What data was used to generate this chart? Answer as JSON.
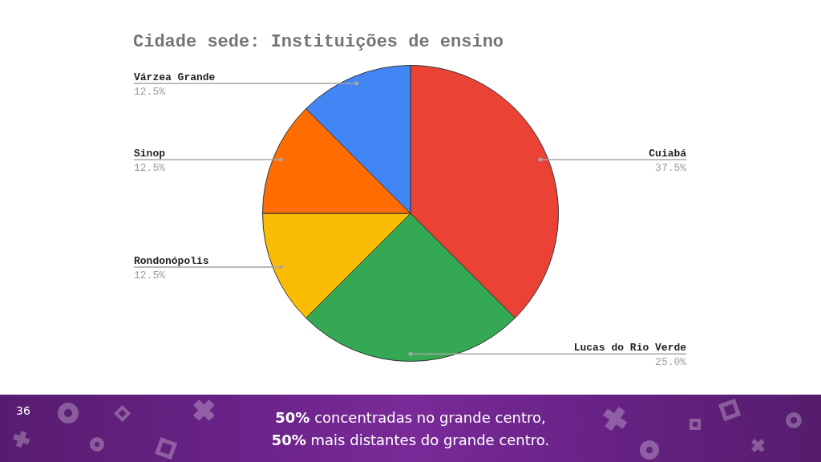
{
  "chart_data": {
    "type": "pie",
    "title": "Cidade sede: Instituições de ensino",
    "categories": [
      "Cuiabá",
      "Lucas do Rio Verde",
      "Rondonópolis",
      "Sinop",
      "Várzea Grande"
    ],
    "values": [
      37.5,
      25,
      12.5,
      12.5,
      12.5
    ],
    "colors": [
      "#ea4335",
      "#34a853",
      "#fbbc04",
      "#ff6d01",
      "#4285f4"
    ],
    "value_labels": [
      "37.5%",
      "25.0%",
      "12.5%",
      "12.5%",
      "12.5%"
    ],
    "annotations": [
      "36",
      "50% concentradas no grande centro,",
      "50% mais distantes do grande centro."
    ]
  }
}
